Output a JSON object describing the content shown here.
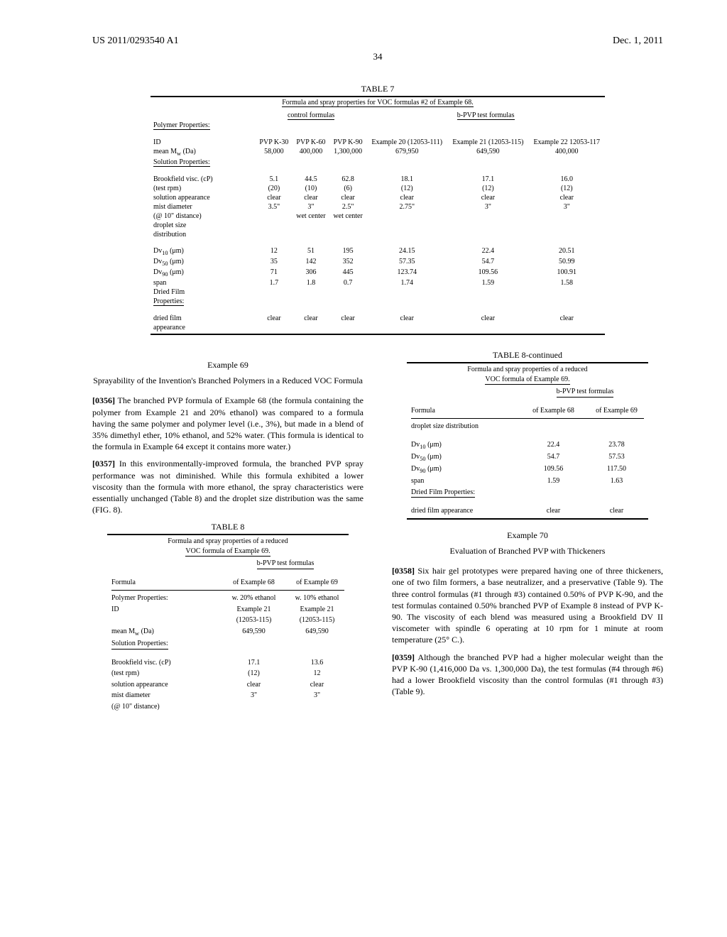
{
  "header": {
    "left": "US 2011/0293540 A1",
    "right": "Dec. 1, 2011",
    "page": "34"
  },
  "table7": {
    "title": "TABLE 7",
    "caption": "Formula and spray properties for VOC formulas #2 of Example 68.",
    "group_left": "control formulas",
    "group_right": "b-PVP test formulas",
    "polyprops": "Polymer Properties:",
    "id_label": "ID",
    "ids": [
      "PVP K-30",
      "PVP K-60",
      "PVP K-90",
      "Example 20 (12053-111)",
      "Example 21 (12053-115)",
      "Example 22 12053-117"
    ],
    "mw_label": "mean M",
    "mw_sub": "w",
    "mw_unit": " (Da)",
    "mw": [
      "58,000",
      "400,000",
      "1,300,000",
      "679,950",
      "649,590",
      "400,000"
    ],
    "solprops": "Solution Properties:",
    "brook_label": "Brookfield visc. (cP)",
    "brook": [
      "5.1",
      "44.5",
      "62.8",
      "18.1",
      "17.1",
      "16.0"
    ],
    "rpm_label": "(test rpm)",
    "rpm": [
      "(20)",
      "(10)",
      "(6)",
      "(12)",
      "(12)",
      "(12)"
    ],
    "app_label": "solution appearance",
    "app": [
      "clear",
      "clear",
      "clear",
      "clear",
      "clear",
      "clear"
    ],
    "mist_label": "mist diameter",
    "mist": [
      "3.5\"",
      "3\"",
      "2.5\"",
      "2.75\"",
      "3\"",
      "3\""
    ],
    "mist2_label": "(@ 10\" distance)",
    "mist2": [
      "",
      "wet center",
      "wet center",
      "",
      "",
      ""
    ],
    "drop_label": "droplet size",
    "dist_label": "distribution",
    "dv10_label": "Dv",
    "dv10_sub": "10",
    "dv_unit": " (μm)",
    "dv10": [
      "12",
      "51",
      "195",
      "24.15",
      "22.4",
      "20.51"
    ],
    "dv50_sub": "50",
    "dv50": [
      "35",
      "142",
      "352",
      "57.35",
      "54.7",
      "50.99"
    ],
    "dv90_sub": "90",
    "dv90": [
      "71",
      "306",
      "445",
      "123.74",
      "109.56",
      "100.91"
    ],
    "span_label": "span",
    "span": [
      "1.7",
      "1.8",
      "0.7",
      "1.74",
      "1.59",
      "1.58"
    ],
    "dried_label": "Dried Film",
    "props_label": "Properties:",
    "film_label": "dried film",
    "app2_label": "appearance",
    "film": [
      "clear",
      "clear",
      "clear",
      "clear",
      "clear",
      "clear"
    ]
  },
  "ex69": {
    "title": "Example 69",
    "subtitle": "Sprayability of the Invention's Branched Polymers in a Reduced VOC Formula",
    "p1num": "[0356]",
    "p1": "    The branched PVP formula of Example 68 (the formula containing the polymer from Example 21 and 20% ethanol) was compared to a formula having the same polymer and polymer level (i.e., 3%), but made in a blend of 35% dimethyl ether, 10% ethanol, and 52% water. (This formula is identical to the formula in Example 64 except it contains more water.)",
    "p2num": "[0357]",
    "p2": "    In this environmentally-improved formula, the branched PVP spray performance was not diminished. While this formula exhibited a lower viscosity than the formula with more ethanol, the spray characteristics were essentially unchanged (Table 8) and the droplet size distribution was the same (FIG. 8)."
  },
  "table8": {
    "title": "TABLE 8",
    "caption1": "Formula and spray properties of a reduced",
    "caption2": "VOC formula of Example 69.",
    "group": "b-PVP test formulas",
    "formula_label": "Formula",
    "col1": "of Example 68",
    "col2": "of Example 69",
    "polyprops": "Polymer Properties:",
    "eth1": "w. 20% ethanol",
    "eth2": "w. 10% ethanol",
    "id_label": "ID",
    "id_v1a": "Example 21",
    "id_v1b": "(12053-115)",
    "id_v2a": "Example 21",
    "id_v2b": "(12053-115)",
    "mw_label": "mean M",
    "mw_sub": "w",
    "mw_unit": " (Da)",
    "mw1": "649,590",
    "mw2": "649,590",
    "solprops": "Solution Properties:",
    "brook_label": "Brookfield visc. (cP)",
    "brook1": "17.1",
    "brook2": "13.6",
    "rpm_label": "(test rpm)",
    "rpm1": "(12)",
    "rpm2": "12",
    "app_label": "solution appearance",
    "app1": "clear",
    "app2": "clear",
    "mist_label": "mist diameter",
    "mist1": "3\"",
    "mist2": "3\"",
    "mist2_label": "(@ 10\" distance)"
  },
  "table8c": {
    "title": "TABLE 8-continued",
    "caption1": "Formula and spray properties of a reduced",
    "caption2": "VOC formula of Example 69.",
    "group": "b-PVP test formulas",
    "formula_label": "Formula",
    "col1": "of Example 68",
    "col2": "of Example 69",
    "drop_label": "droplet size distribution",
    "dv10_label": "Dv",
    "dv10_sub": "10",
    "dv_unit": " (μm)",
    "dv10_1": "22.4",
    "dv10_2": "23.78",
    "dv50_sub": "50",
    "dv50_1": "54.7",
    "dv50_2": "57.53",
    "dv90_sub": "90",
    "dv90_1": "109.56",
    "dv90_2": "117.50",
    "span_label": "span",
    "span1": "1.59",
    "span2": "1.63",
    "dried_label": "Dried Film Properties:",
    "film_label": "dried film appearance",
    "film1": "clear",
    "film2": "clear"
  },
  "ex70": {
    "title": "Example 70",
    "subtitle": "Evaluation of Branched PVP with Thickeners",
    "p1num": "[0358]",
    "p1": "    Six hair gel prototypes were prepared having one of three thickeners, one of two film formers, a base neutralizer, and a preservative (Table 9). The three control formulas (#1 through #3) contained 0.50% of PVP K-90, and the test formulas contained 0.50% branched PVP of Example 8 instead of PVP K-90. The viscosity of each blend was measured using a Brookfield DV II viscometer with spindle 6 operating at 10 rpm for 1 minute at room temperature (25° C.).",
    "p2num": "[0359]",
    "p2": "    Although the branched PVP had a higher molecular weight than the PVP K-90 (1,416,000 Da vs. 1,300,000 Da), the test formulas (#4 through #6) had a lower Brookfield viscosity than the control formulas (#1 through #3) (Table 9)."
  }
}
